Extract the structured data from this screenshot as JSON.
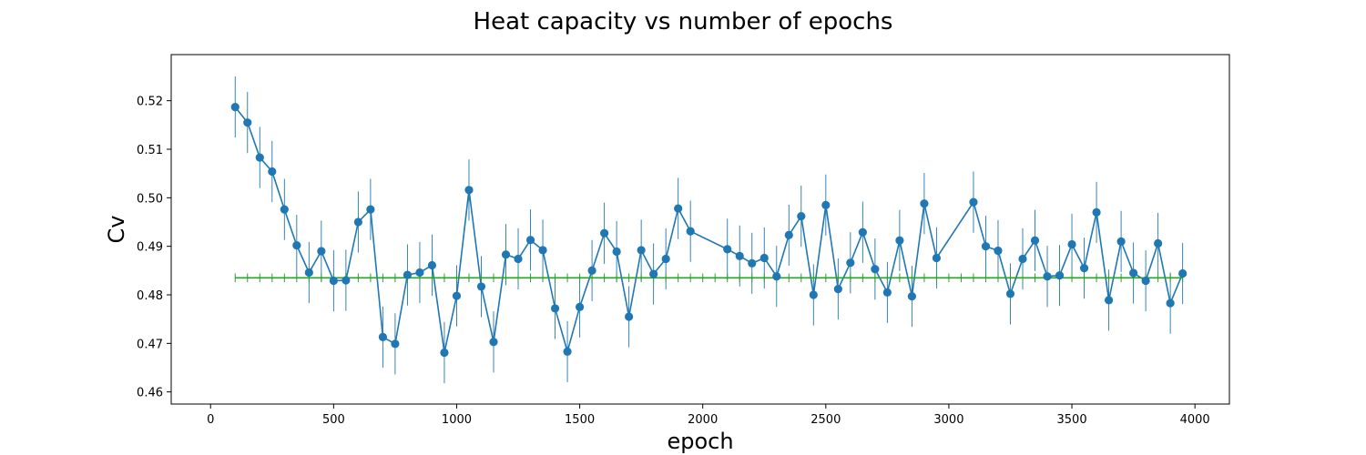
{
  "chart_data": {
    "type": "line",
    "title": "Heat capacity vs number of epochs",
    "xlabel": "epoch",
    "ylabel": "Cv",
    "xlim": [
      -160,
      4140
    ],
    "ylim": [
      0.4575,
      0.5295
    ],
    "xticks": [
      0,
      500,
      1000,
      1500,
      2000,
      2500,
      3000,
      3500,
      4000
    ],
    "yticks": [
      0.46,
      0.47,
      0.48,
      0.49,
      0.5,
      0.51,
      0.52
    ],
    "ytick_labels": [
      "0.46",
      "0.47",
      "0.48",
      "0.49",
      "0.50",
      "0.51",
      "0.52"
    ],
    "grid": false,
    "series": [
      {
        "color": "#1f77b4",
        "marker": "circle",
        "error_bar": 0.0063,
        "x": [
          100,
          150,
          200,
          250,
          300,
          350,
          400,
          450,
          500,
          550,
          600,
          650,
          700,
          750,
          800,
          850,
          900,
          950,
          1000,
          1050,
          1100,
          1150,
          1200,
          1250,
          1300,
          1350,
          1400,
          1450,
          1500,
          1550,
          1600,
          1650,
          1700,
          1750,
          1800,
          1850,
          1900,
          1950,
          2100,
          2150,
          2200,
          2250,
          2300,
          2350,
          2400,
          2450,
          2500,
          2550,
          2600,
          2650,
          2700,
          2750,
          2800,
          2850,
          2900,
          2950,
          3100,
          3150,
          3200,
          3250,
          3300,
          3350,
          3400,
          3450,
          3500,
          3550,
          3600,
          3650,
          3700,
          3750,
          3800,
          3850,
          3900,
          3950
        ],
        "y": [
          0.5187,
          0.5155,
          0.5083,
          0.5054,
          0.4976,
          0.4902,
          0.4846,
          0.489,
          0.4829,
          0.483,
          0.495,
          0.4976,
          0.4713,
          0.4699,
          0.4841,
          0.4846,
          0.4861,
          0.4681,
          0.4798,
          0.5016,
          0.4817,
          0.4703,
          0.4883,
          0.4874,
          0.4913,
          0.4892,
          0.4772,
          0.4683,
          0.4775,
          0.485,
          0.4927,
          0.4889,
          0.4755,
          0.4892,
          0.4843,
          0.4874,
          0.4978,
          0.4931,
          0.4894,
          0.488,
          0.4865,
          0.4876,
          0.4838,
          0.4923,
          0.4962,
          0.48,
          0.4985,
          0.4812,
          0.4866,
          0.4929,
          0.4853,
          0.4805,
          0.4912,
          0.4797,
          0.4988,
          0.4876,
          0.4991,
          0.49,
          0.4891,
          0.4802,
          0.4874,
          0.4912,
          0.4838,
          0.484,
          0.4904,
          0.4855,
          0.497,
          0.4789,
          0.491,
          0.4845,
          0.4829,
          0.4906,
          0.4783,
          0.4844
        ]
      },
      {
        "color": "#2ca02c",
        "marker": "none",
        "error_bar": 0.0009,
        "x_range": [
          100,
          3950
        ],
        "y_constant": 0.4835
      }
    ]
  }
}
